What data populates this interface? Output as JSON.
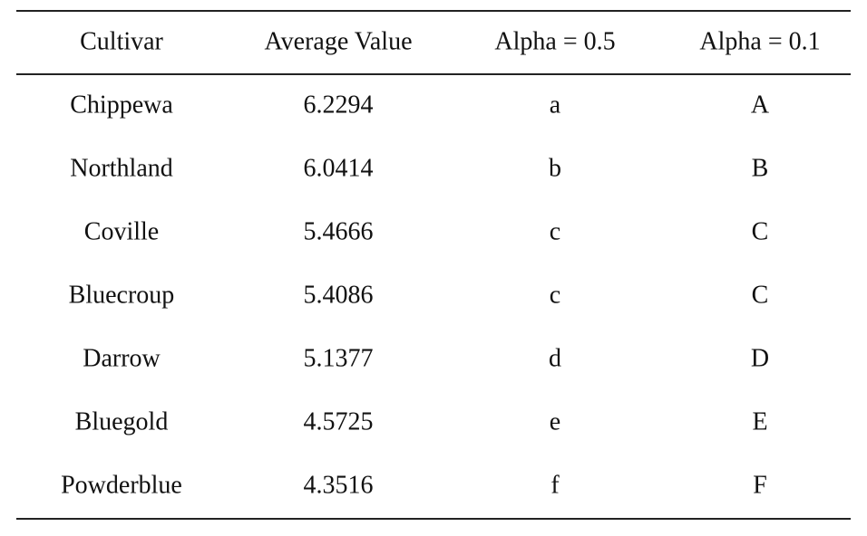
{
  "table": {
    "header": [
      "Cultivar",
      "Average Value",
      "Alpha = 0.5",
      "Alpha = 0.1"
    ],
    "rows": [
      [
        "Chippewa",
        "6.2294",
        "a",
        "A"
      ],
      [
        "Northland",
        "6.0414",
        "b",
        "B"
      ],
      [
        "Coville",
        "5.4666",
        "c",
        "C"
      ],
      [
        "Bluecroup",
        "5.4086",
        "c",
        "C"
      ],
      [
        "Darrow",
        "5.1377",
        "d",
        "D"
      ],
      [
        "Bluegold",
        "4.5725",
        "e",
        "E"
      ],
      [
        "Powderblue",
        "4.3516",
        "f",
        "F"
      ]
    ]
  }
}
